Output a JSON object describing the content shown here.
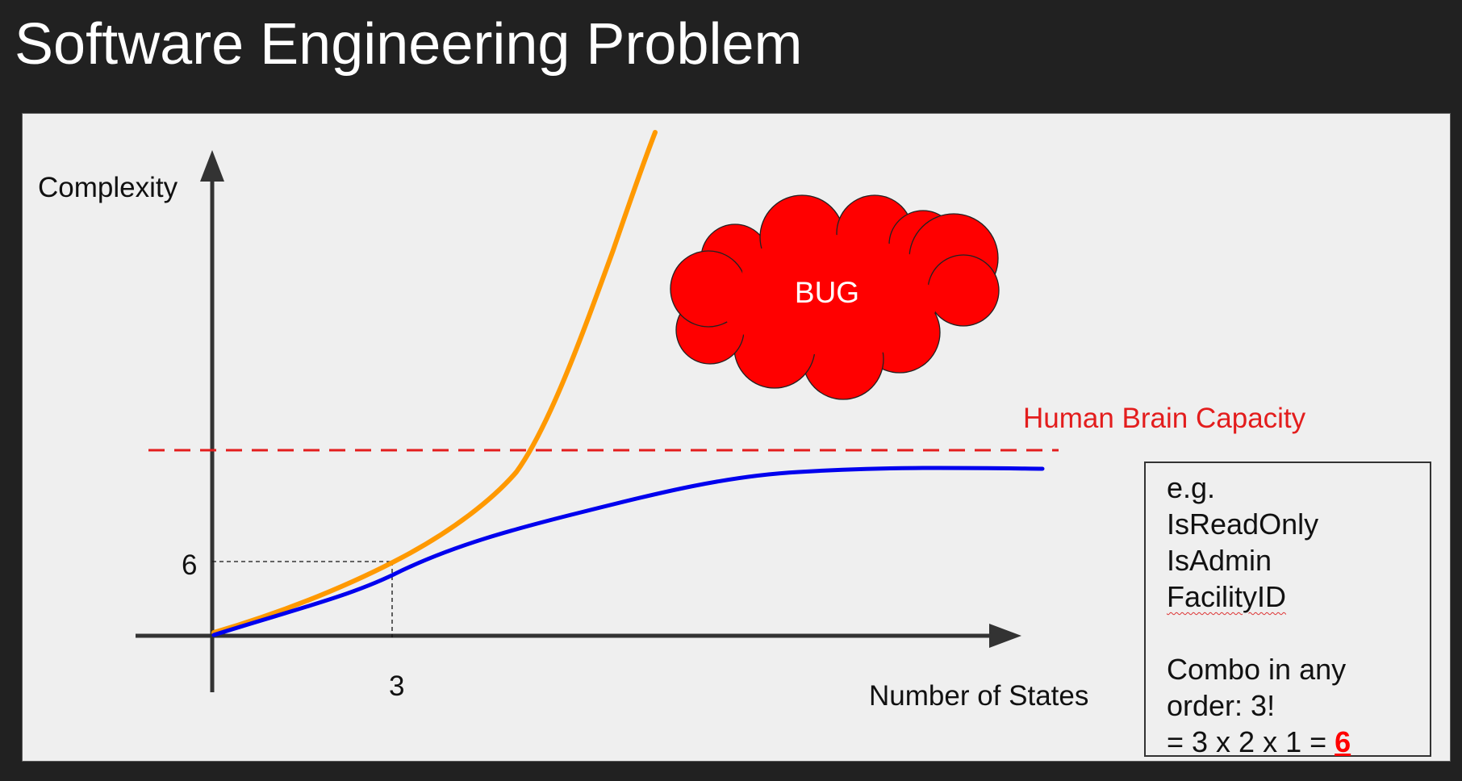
{
  "slide": {
    "title": "Software Engineering Problem"
  },
  "diagram": {
    "y_axis_label": "Complexity",
    "x_axis_label": "Number of States",
    "y_tick_label": "6",
    "x_tick_label": "3",
    "capacity_label": "Human Brain Capacity",
    "bug_label": "BUG",
    "colors": {
      "orange_curve": "#ff9900",
      "blue_curve": "#0000ee",
      "capacity_line": "#e31d1d",
      "bug_cloud": "#ff0000",
      "axis": "#333333"
    }
  },
  "example_box": {
    "intro": "e.g.",
    "items": [
      "IsReadOnly",
      "IsAdmin",
      "FacilityID"
    ],
    "combo_line1": "Combo in any",
    "combo_line2": "order: 3!",
    "formula_prefix": "= 3 x 2 x 1 = ",
    "result": "6"
  }
}
